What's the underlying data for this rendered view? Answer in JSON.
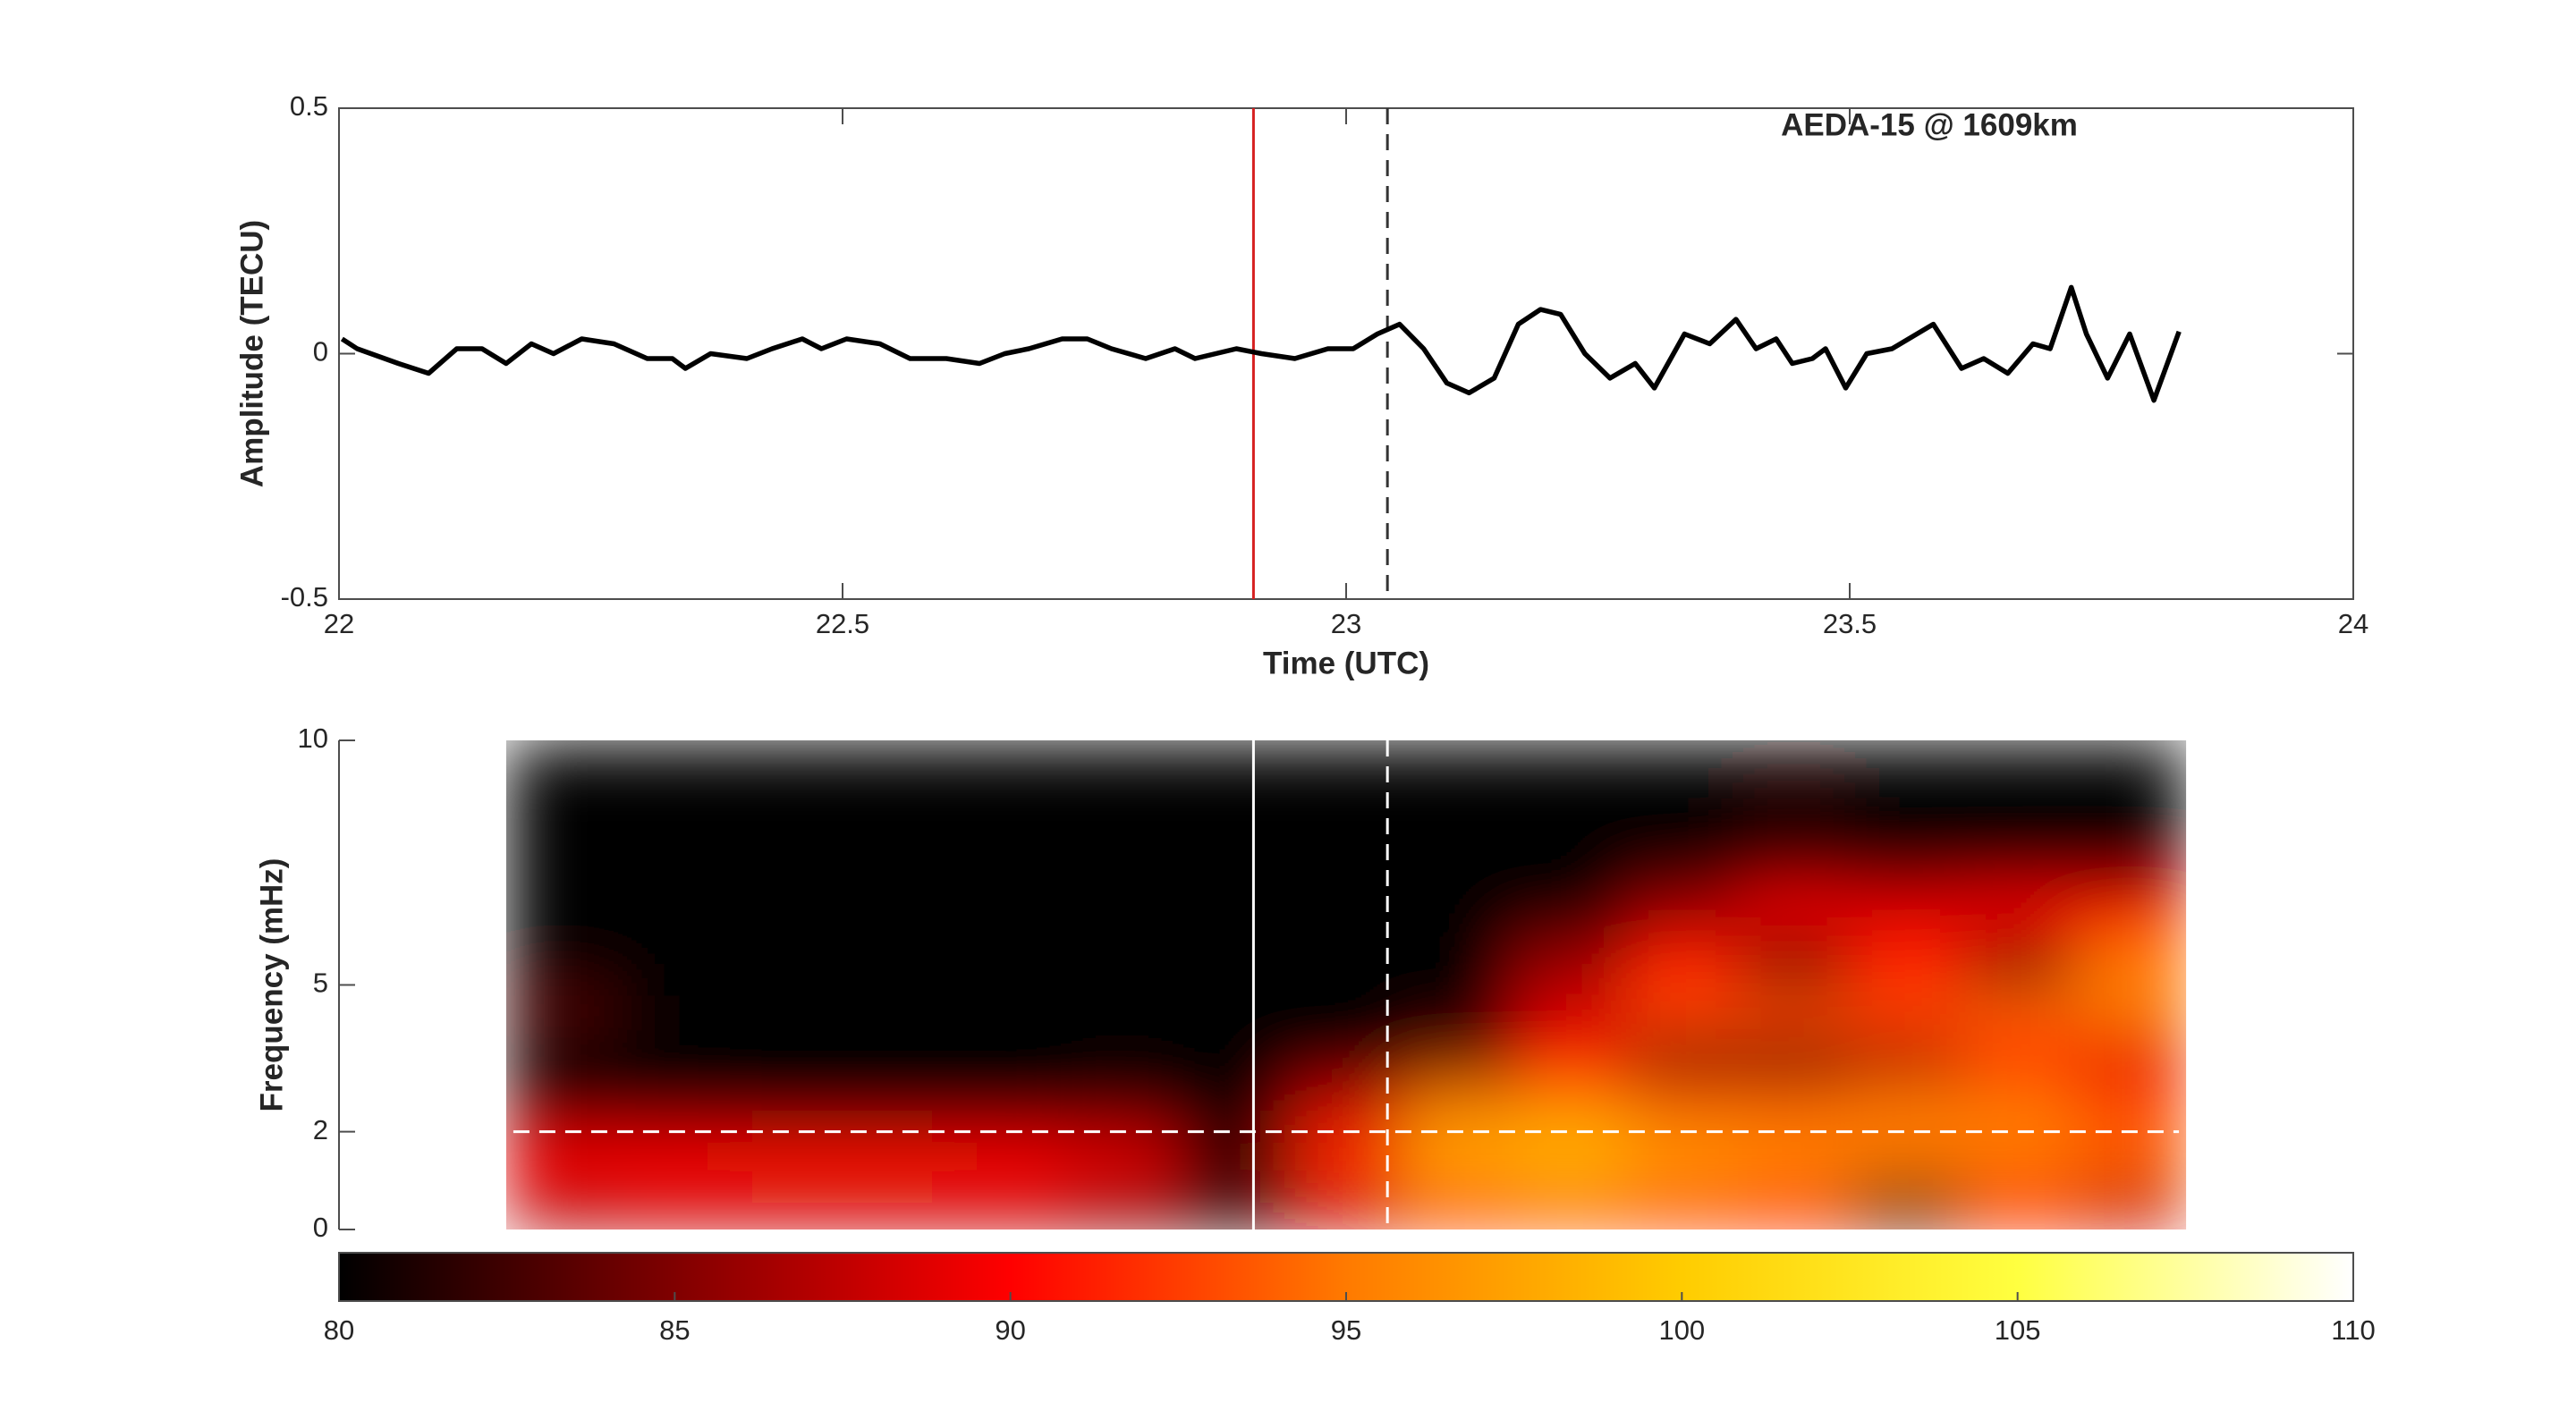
{
  "chart_data": [
    {
      "type": "line",
      "annotation": "AEDA-15 @ 1609km",
      "xlabel": "Time (UTC)",
      "ylabel": "Amplitude (TECU)",
      "xlim": [
        22,
        24
      ],
      "xticks": [
        22,
        22.5,
        23,
        23.5,
        24
      ],
      "ylim": [
        -0.5,
        0.5
      ],
      "yticks": [
        -0.5,
        0,
        0.5
      ],
      "color": "#000000",
      "x": [
        22.003,
        22.018,
        22.059,
        22.089,
        22.117,
        22.142,
        22.166,
        22.191,
        22.213,
        22.241,
        22.273,
        22.306,
        22.331,
        22.344,
        22.369,
        22.405,
        22.43,
        22.46,
        22.479,
        22.504,
        22.537,
        22.567,
        22.603,
        22.636,
        22.661,
        22.685,
        22.718,
        22.743,
        22.767,
        22.801,
        22.83,
        22.85,
        22.891,
        22.916,
        22.949,
        22.982,
        23.007,
        23.031,
        23.053,
        23.077,
        23.1,
        23.122,
        23.147,
        23.171,
        23.193,
        23.213,
        23.237,
        23.262,
        23.287,
        23.306,
        23.336,
        23.361,
        23.387,
        23.407,
        23.427,
        23.443,
        23.463,
        23.476,
        23.496,
        23.517,
        23.542,
        23.583,
        23.611,
        23.633,
        23.657,
        23.682,
        23.699,
        23.72,
        23.735,
        23.756,
        23.778,
        23.802,
        23.827
      ],
      "values": [
        0.03,
        0.01,
        -0.02,
        -0.04,
        0.01,
        0.01,
        -0.02,
        0.02,
        0,
        0.03,
        0.02,
        -0.01,
        -0.01,
        -0.03,
        0,
        -0.01,
        0.01,
        0.03,
        0.01,
        0.03,
        0.02,
        -0.01,
        -0.01,
        -0.02,
        0,
        0.01,
        0.03,
        0.03,
        0.01,
        -0.01,
        0.01,
        -0.01,
        0.01,
        0,
        -0.01,
        0.01,
        0.01,
        0.04,
        0.06,
        0.01,
        -0.06,
        -0.08,
        -0.05,
        0.06,
        0.09,
        0.08,
        0,
        -0.05,
        -0.02,
        -0.07,
        0.04,
        0.02,
        0.07,
        0.01,
        0.03,
        -0.02,
        -0.01,
        0.01,
        -0.07,
        0,
        0.01,
        0.06,
        -0.03,
        -0.01,
        -0.04,
        0.02,
        0.01,
        0.135,
        0.04,
        -0.05,
        0.04,
        -0.095,
        0.045
      ],
      "vlines": [
        {
          "x": 22.908,
          "color": "#d62020",
          "style": "solid"
        },
        {
          "x": 23.041,
          "color": "#333333",
          "style": "dashed"
        }
      ]
    },
    {
      "type": "heatmap",
      "ylabel": "Frequency (mHz)",
      "xlim": [
        22,
        24
      ],
      "ylim": [
        0,
        10
      ],
      "yticks": [
        0,
        2,
        5,
        10
      ],
      "x_edges": [
        22.166,
        22.277,
        22.388,
        22.5,
        22.611,
        22.722,
        22.833,
        22.944,
        23.056,
        23.167,
        23.278,
        23.389,
        23.5,
        23.612,
        23.723,
        23.834
      ],
      "y_edges": [
        0,
        1,
        2,
        3,
        4,
        5,
        6,
        7,
        8,
        9,
        10
      ],
      "z": [
        [
          87,
          88,
          88,
          88,
          88,
          86,
          82,
          88,
          93,
          94,
          93,
          92,
          84,
          92,
          88
        ],
        [
          90,
          90,
          91,
          91,
          90,
          89,
          83,
          92,
          98,
          99,
          97,
          96,
          95,
          95,
          94
        ],
        [
          82,
          81,
          80,
          80,
          80,
          82,
          80,
          88,
          95,
          96,
          94,
          94,
          95,
          95,
          93
        ],
        [
          80,
          80,
          80,
          80,
          80,
          80,
          80,
          80,
          84,
          90,
          85,
          84,
          87,
          92,
          89
        ],
        [
          83,
          80,
          80,
          80,
          80,
          80,
          80,
          80,
          80,
          88,
          93,
          93,
          93,
          94,
          95
        ],
        [
          80,
          80,
          80,
          80,
          80,
          80,
          80,
          80,
          80,
          86,
          91,
          82,
          91,
          84,
          95
        ],
        [
          80,
          80,
          80,
          80,
          80,
          80,
          80,
          80,
          80,
          80,
          86,
          90,
          89,
          90,
          90
        ],
        [
          80,
          80,
          80,
          80,
          80,
          80,
          80,
          80,
          80,
          80,
          80,
          80,
          80,
          80,
          80
        ],
        [
          80,
          80,
          80,
          80,
          80,
          80,
          80,
          80,
          80,
          80,
          80,
          82,
          80,
          80,
          80
        ],
        [
          80,
          80,
          80,
          80,
          80,
          80,
          80,
          80,
          80,
          80,
          80,
          80,
          80,
          80,
          80
        ]
      ],
      "vlines": [
        {
          "x": 22.908,
          "color": "#ffffff",
          "style": "solid"
        },
        {
          "x": 23.041,
          "color": "#ffffff",
          "style": "dashed"
        }
      ],
      "hlines": [
        {
          "y": 2,
          "color": "#ffffff",
          "style": "dashed"
        }
      ],
      "colorbar": {
        "lim": [
          80,
          110
        ],
        "ticks": [
          80,
          85,
          90,
          95,
          100,
          105,
          110
        ],
        "colors": [
          "#000000",
          "#800000",
          "#ff0000",
          "#ff7a00",
          "#ffcc00",
          "#ffff40",
          "#ffffff"
        ]
      }
    }
  ]
}
